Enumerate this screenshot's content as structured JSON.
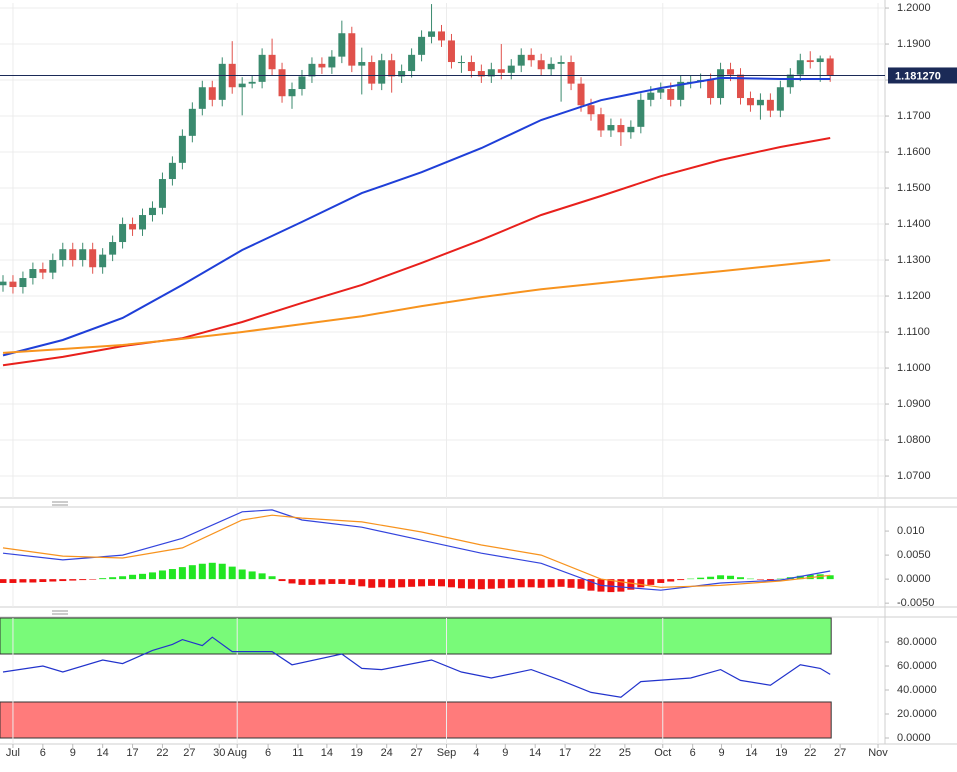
{
  "chart_data": [
    {
      "type": "candlestick",
      "open": [
        1.123,
        1.124,
        1.1225,
        1.125,
        1.1275,
        1.1265,
        1.13,
        1.133,
        1.13,
        1.133,
        1.128,
        1.1315,
        1.135,
        1.14,
        1.1385,
        1.1425,
        1.1445,
        1.1525,
        1.157,
        1.1645,
        1.172,
        1.178,
        1.1745,
        1.1845,
        1.178,
        1.179,
        1.1795,
        1.187,
        1.183,
        1.1755,
        1.1775,
        1.181,
        1.1845,
        1.1835,
        1.1865,
        1.193,
        1.184,
        1.185,
        1.179,
        1.1855,
        1.181,
        1.1825,
        1.187,
        1.192,
        1.1935,
        1.191,
        1.185,
        1.185,
        1.1825,
        1.181,
        1.183,
        1.182,
        1.184,
        1.187,
        1.1855,
        1.183,
        1.1845,
        1.185,
        1.179,
        1.173,
        1.1705,
        1.166,
        1.1675,
        1.1655,
        1.167,
        1.1745,
        1.1765,
        1.1775,
        1.1745,
        1.1795,
        1.1795,
        1.18,
        1.175,
        1.183,
        1.1815,
        1.175,
        1.173,
        1.1745,
        1.1715,
        1.178,
        1.1815,
        1.1855,
        1.185,
        1.186
      ],
      "high": [
        1.1258,
        1.1258,
        1.1268,
        1.1293,
        1.1293,
        1.1318,
        1.1348,
        1.1348,
        1.1348,
        1.1348,
        1.1333,
        1.1368,
        1.1418,
        1.1418,
        1.1443,
        1.1463,
        1.1543,
        1.1588,
        1.1663,
        1.1738,
        1.1798,
        1.1798,
        1.1863,
        1.1908,
        1.1808,
        1.1813,
        1.1888,
        1.1915,
        1.1848,
        1.1793,
        1.1828,
        1.1863,
        1.1863,
        1.1883,
        1.1965,
        1.1948,
        1.189,
        1.1868,
        1.1873,
        1.1873,
        1.1843,
        1.1888,
        1.1938,
        1.2011,
        1.1953,
        1.1928,
        1.1868,
        1.1868,
        1.1843,
        1.1848,
        1.19,
        1.1858,
        1.1888,
        1.1888,
        1.1873,
        1.1863,
        1.1868,
        1.1868,
        1.1808,
        1.1748,
        1.1723,
        1.1693,
        1.1693,
        1.1688,
        1.1763,
        1.1783,
        1.1793,
        1.1793,
        1.1813,
        1.1813,
        1.1818,
        1.1818,
        1.1848,
        1.1848,
        1.1833,
        1.1768,
        1.1763,
        1.1763,
        1.1798,
        1.1833,
        1.1873,
        1.188,
        1.1868,
        1.1868
      ],
      "low": [
        1.1212,
        1.1207,
        1.1207,
        1.1232,
        1.1247,
        1.1247,
        1.1282,
        1.1282,
        1.1282,
        1.1262,
        1.1262,
        1.1297,
        1.1332,
        1.1367,
        1.1367,
        1.1407,
        1.1427,
        1.1507,
        1.1552,
        1.1627,
        1.1702,
        1.1727,
        1.1727,
        1.1762,
        1.1702,
        1.1777,
        1.1777,
        1.1812,
        1.1737,
        1.172,
        1.1757,
        1.1792,
        1.1817,
        1.1817,
        1.1847,
        1.1822,
        1.176,
        1.1772,
        1.1772,
        1.1765,
        1.1792,
        1.1807,
        1.1852,
        1.1902,
        1.1892,
        1.1832,
        1.182,
        1.1807,
        1.1792,
        1.1792,
        1.1802,
        1.1802,
        1.1822,
        1.1837,
        1.1812,
        1.1812,
        1.174,
        1.1772,
        1.1712,
        1.1687,
        1.1642,
        1.1642,
        1.1617,
        1.1637,
        1.1652,
        1.1727,
        1.1747,
        1.1727,
        1.1727,
        1.1777,
        1.1777,
        1.1732,
        1.1732,
        1.1797,
        1.1732,
        1.1712,
        1.169,
        1.1697,
        1.1697,
        1.1762,
        1.1797,
        1.1832,
        1.1795,
        1.1795
      ],
      "close": [
        1.124,
        1.1225,
        1.125,
        1.1275,
        1.1265,
        1.13,
        1.133,
        1.13,
        1.133,
        1.128,
        1.1315,
        1.135,
        1.14,
        1.1385,
        1.1425,
        1.1445,
        1.1525,
        1.157,
        1.1645,
        1.172,
        1.178,
        1.1745,
        1.1845,
        1.178,
        1.179,
        1.1795,
        1.187,
        1.183,
        1.1755,
        1.1775,
        1.181,
        1.1845,
        1.1835,
        1.1865,
        1.193,
        1.184,
        1.185,
        1.179,
        1.1855,
        1.181,
        1.1825,
        1.187,
        1.192,
        1.1935,
        1.191,
        1.185,
        1.185,
        1.1825,
        1.181,
        1.183,
        1.182,
        1.184,
        1.187,
        1.1855,
        1.183,
        1.1845,
        1.185,
        1.179,
        1.173,
        1.1705,
        1.166,
        1.1675,
        1.1655,
        1.167,
        1.1745,
        1.1765,
        1.1775,
        1.1745,
        1.1795,
        1.1795,
        1.18,
        1.175,
        1.183,
        1.1815,
        1.175,
        1.173,
        1.1745,
        1.1715,
        1.178,
        1.1815,
        1.1855,
        1.185,
        1.186,
        1.1813
      ],
      "up_color": "#3a8a6e",
      "down_color": "#e0514b",
      "xlim": [
        -0.3,
        88.5
      ],
      "ylim": [
        1.0639,
        1.2014
      ],
      "yticks": [
        {
          "value": 1.07,
          "label": "1.0700"
        },
        {
          "value": 1.08,
          "label": "1.0800"
        },
        {
          "value": 1.09,
          "label": "1.0900"
        },
        {
          "value": 1.1,
          "label": "1.1000"
        },
        {
          "value": 1.11,
          "label": "1.1100"
        },
        {
          "value": 1.12,
          "label": "1.1200"
        },
        {
          "value": 1.13,
          "label": "1.1300"
        },
        {
          "value": 1.14,
          "label": "1.1400"
        },
        {
          "value": 1.15,
          "label": "1.1500"
        },
        {
          "value": 1.16,
          "label": "1.1600"
        },
        {
          "value": 1.17,
          "label": "1.1700"
        },
        {
          "value": 1.18,
          "label": "1.1800"
        },
        {
          "value": 1.19,
          "label": "1.1900"
        },
        {
          "value": 1.2,
          "label": "1.2000"
        }
      ],
      "grid": true,
      "lines": [
        {
          "color": "#1f3fd8",
          "x": [
            0,
            6,
            12,
            18,
            24,
            30,
            36,
            42,
            48,
            54,
            60,
            66,
            72,
            78,
            83
          ],
          "values": [
            1.1035,
            1.1078,
            1.1139,
            1.1231,
            1.1328,
            1.1406,
            1.1486,
            1.1544,
            1.1611,
            1.1689,
            1.1744,
            1.1778,
            1.1806,
            1.1803,
            1.1803
          ]
        },
        {
          "color": "#e8201c",
          "x": [
            0,
            6,
            12,
            18,
            24,
            30,
            36,
            42,
            48,
            54,
            60,
            66,
            72,
            78,
            83
          ],
          "values": [
            1.1008,
            1.1031,
            1.1061,
            1.1083,
            1.1128,
            1.1181,
            1.1231,
            1.1292,
            1.1356,
            1.1425,
            1.1478,
            1.1533,
            1.1578,
            1.1614,
            1.1639
          ]
        },
        {
          "color": "#f7931e",
          "x": [
            0,
            6,
            12,
            18,
            24,
            30,
            36,
            42,
            48,
            54,
            60,
            66,
            72,
            78,
            83
          ],
          "values": [
            1.1042,
            1.1053,
            1.1064,
            1.1081,
            1.11,
            1.1122,
            1.1144,
            1.1172,
            1.1197,
            1.1219,
            1.1236,
            1.1253,
            1.1269,
            1.1286,
            1.13
          ]
        }
      ],
      "last_price": {
        "value": 1.18127,
        "label": "1.181270"
      },
      "last_price_color": "#1b2a57"
    },
    {
      "type": "macd",
      "histogram": {
        "values": [
          -0.0008,
          -0.0008,
          -0.0007,
          -0.0007,
          -0.0006,
          -0.0005,
          -0.0004,
          -0.0003,
          -0.0002,
          -0.0001,
          0.0002,
          0.0004,
          0.0006,
          0.0009,
          0.0011,
          0.0014,
          0.0018,
          0.0021,
          0.0025,
          0.0029,
          0.0032,
          0.0034,
          0.0032,
          0.0026,
          0.002,
          0.0016,
          0.0012,
          0.0006,
          -0.0004,
          -0.0009,
          -0.0012,
          -0.0012,
          -0.0011,
          -0.001,
          -0.001,
          -0.0012,
          -0.0015,
          -0.0018,
          -0.0017,
          -0.0018,
          -0.0017,
          -0.0016,
          -0.0015,
          -0.0014,
          -0.0015,
          -0.0017,
          -0.0019,
          -0.002,
          -0.0021,
          -0.002,
          -0.0019,
          -0.0018,
          -0.0017,
          -0.0017,
          -0.0018,
          -0.0017,
          -0.0016,
          -0.0018,
          -0.002,
          -0.0024,
          -0.0026,
          -0.0027,
          -0.0026,
          -0.0022,
          -0.0017,
          -0.0012,
          -0.0008,
          -0.0005,
          -0.0002,
          0.0001,
          0.0003,
          0.0005,
          0.0008,
          0.0007,
          0.0004,
          0.0001,
          -0.0001,
          -0.0002,
          0.0001,
          0.0004,
          0.0007,
          0.0009,
          0.001,
          0.0008
        ],
        "up_color": "#22e622",
        "down_color": "#ee1111"
      },
      "lines": [
        {
          "color": "#3344dd",
          "x": [
            0,
            6,
            12,
            18,
            24,
            27,
            30,
            36,
            42,
            48,
            54,
            60,
            66,
            72,
            78,
            83
          ],
          "values": [
            0.0054,
            0.004,
            0.005,
            0.0085,
            0.014,
            0.0144,
            0.0123,
            0.0108,
            0.0081,
            0.0054,
            0.0033,
            -0.0013,
            -0.0023,
            -0.0008,
            -0.0002,
            0.0017
          ]
        },
        {
          "color": "#f7931e",
          "x": [
            0,
            6,
            12,
            18,
            24,
            27,
            30,
            36,
            42,
            48,
            54,
            60,
            66,
            72,
            78,
            83
          ],
          "values": [
            0.0065,
            0.0048,
            0.0044,
            0.0065,
            0.0123,
            0.0133,
            0.0127,
            0.0119,
            0.0098,
            0.0071,
            0.005,
            0.0,
            -0.0017,
            -0.0013,
            -0.0004,
            0.0008
          ]
        }
      ],
      "xlim": [
        -0.3,
        88.5
      ],
      "ylim": [
        -0.0058,
        0.0148
      ],
      "yticks": [
        {
          "value": -0.005,
          "label": "-0.0050"
        },
        {
          "value": 0,
          "label": "0.0000"
        },
        {
          "value": 0.005,
          "label": "0.0050"
        },
        {
          "value": 0.01,
          "label": "0.010"
        }
      ]
    },
    {
      "type": "rsi",
      "bands": [
        {
          "from": 70,
          "to": 100,
          "color": "#79fa79"
        },
        {
          "from": 0,
          "to": 30,
          "color": "#ff7b7b"
        }
      ],
      "lines": [
        {
          "color": "#2233cc",
          "x": [
            0,
            4,
            6,
            10,
            12,
            15,
            17,
            18,
            20,
            21,
            23,
            27,
            29,
            34,
            36,
            38,
            43,
            46,
            49,
            53,
            56,
            59,
            62,
            64,
            69,
            72,
            74,
            77,
            80,
            82,
            83
          ],
          "values": [
            55,
            60,
            55,
            65,
            62,
            73,
            78,
            82,
            77,
            84,
            72,
            72,
            61,
            70,
            58,
            57,
            65,
            55,
            50,
            57,
            48,
            38,
            34,
            47,
            50,
            57,
            48,
            44,
            61,
            58,
            53
          ]
        }
      ],
      "xlim": [
        -0.3,
        88.5
      ],
      "ylim": [
        -5,
        100
      ],
      "yticks": [
        {
          "value": 0,
          "label": "0.0000"
        },
        {
          "value": 20,
          "label": "20.0000"
        },
        {
          "value": 40,
          "label": "40.0000"
        },
        {
          "value": 60,
          "label": "60.0000"
        },
        {
          "value": 80,
          "label": "80.0000"
        }
      ],
      "xticks": [
        {
          "value": 1,
          "label": "Jul"
        },
        {
          "value": 4,
          "label": "6"
        },
        {
          "value": 7,
          "label": "9"
        },
        {
          "value": 10,
          "label": "14"
        },
        {
          "value": 13,
          "label": "17"
        },
        {
          "value": 16,
          "label": "22"
        },
        {
          "value": 18.7,
          "label": "27"
        },
        {
          "value": 21.7,
          "label": "30"
        },
        {
          "value": 23.5,
          "label": "Aug"
        },
        {
          "value": 26.6,
          "label": "6"
        },
        {
          "value": 29.6,
          "label": "11"
        },
        {
          "value": 32.5,
          "label": "14"
        },
        {
          "value": 35.5,
          "label": "19"
        },
        {
          "value": 38.5,
          "label": "24"
        },
        {
          "value": 41.5,
          "label": "27"
        },
        {
          "value": 44.5,
          "label": "Sep"
        },
        {
          "value": 47.5,
          "label": "4"
        },
        {
          "value": 50.4,
          "label": "9"
        },
        {
          "value": 53.4,
          "label": "14"
        },
        {
          "value": 56.4,
          "label": "17"
        },
        {
          "value": 59.4,
          "label": "22"
        },
        {
          "value": 62.4,
          "label": "25"
        },
        {
          "value": 66.2,
          "label": "Oct"
        },
        {
          "value": 69.2,
          "label": "6"
        },
        {
          "value": 72.1,
          "label": "9"
        },
        {
          "value": 75.1,
          "label": "14"
        },
        {
          "value": 78.1,
          "label": "19"
        },
        {
          "value": 81,
          "label": "22"
        },
        {
          "value": 84,
          "label": "27"
        },
        {
          "value": 87.8,
          "label": "Nov"
        }
      ]
    }
  ]
}
